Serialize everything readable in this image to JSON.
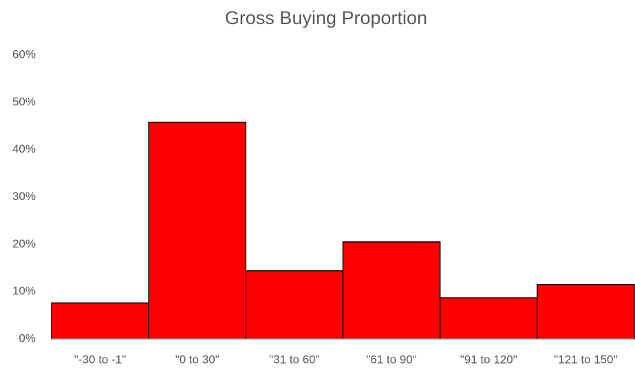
{
  "chart_data": {
    "type": "bar",
    "title": "Gross Buying Proportion",
    "categories": [
      "\"-30 to -1\"",
      "\"0 to 30\"",
      "\"31 to 60\"",
      "\"61 to 90\"",
      "\"91 to 120\"",
      "\"121 to 150\""
    ],
    "values": [
      7.6,
      45.8,
      14.4,
      20.5,
      8.7,
      11.5
    ],
    "color": "#ff0000",
    "ylim": [
      0,
      60
    ],
    "yticks": [
      {
        "value": 0,
        "label": "0%"
      },
      {
        "value": 10,
        "label": "10%"
      },
      {
        "value": 20,
        "label": "20%"
      },
      {
        "value": 30,
        "label": "30%"
      },
      {
        "value": 40,
        "label": "40%"
      },
      {
        "value": 50,
        "label": "50%"
      },
      {
        "value": 60,
        "label": "60%"
      }
    ],
    "grid": false
  }
}
